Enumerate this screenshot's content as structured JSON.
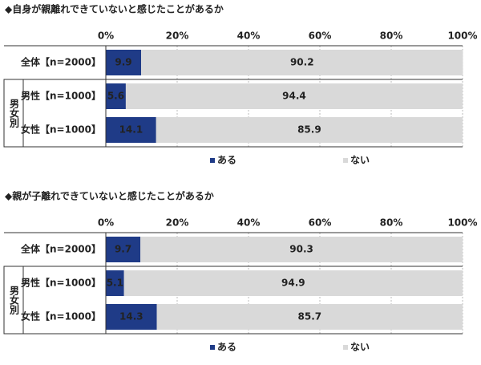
{
  "chart_data": [
    {
      "type": "stacked-bar-horizontal",
      "title": "◆自身が親離れできていないと感じたことがあるか",
      "categories": [
        "全体【n=2000】",
        "男性【n=1000】",
        "女性【n=1000】"
      ],
      "group_label": "男女別",
      "series": [
        {
          "name": "ある",
          "color": "#1f3b87",
          "values": [
            9.9,
            5.6,
            14.1
          ]
        },
        {
          "name": "ない",
          "color": "#d9d9d9",
          "values": [
            90.2,
            94.4,
            85.9
          ]
        }
      ],
      "xlim": [
        0,
        100
      ],
      "xticks": [
        {
          "value": 0,
          "label": "0%"
        },
        {
          "value": 20,
          "label": "20%"
        },
        {
          "value": 40,
          "label": "40%"
        },
        {
          "value": 60,
          "label": "60%"
        },
        {
          "value": 80,
          "label": "80%"
        },
        {
          "value": 100,
          "label": "100%"
        }
      ],
      "grid": true
    },
    {
      "type": "stacked-bar-horizontal",
      "title": "◆親が子離れできていないと感じたことがあるか",
      "categories": [
        "全体【n=2000】",
        "男性【n=1000】",
        "女性【n=1000】"
      ],
      "group_label": "男女別",
      "series": [
        {
          "name": "ある",
          "color": "#1f3b87",
          "values": [
            9.7,
            5.1,
            14.3
          ]
        },
        {
          "name": "ない",
          "color": "#d9d9d9",
          "values": [
            90.3,
            94.9,
            85.7
          ]
        }
      ],
      "xlim": [
        0,
        100
      ],
      "xticks": [
        {
          "value": 0,
          "label": "0%"
        },
        {
          "value": 20,
          "label": "20%"
        },
        {
          "value": 40,
          "label": "40%"
        },
        {
          "value": 60,
          "label": "60%"
        },
        {
          "value": 80,
          "label": "80%"
        },
        {
          "value": 100,
          "label": "100%"
        }
      ],
      "grid": true
    }
  ]
}
